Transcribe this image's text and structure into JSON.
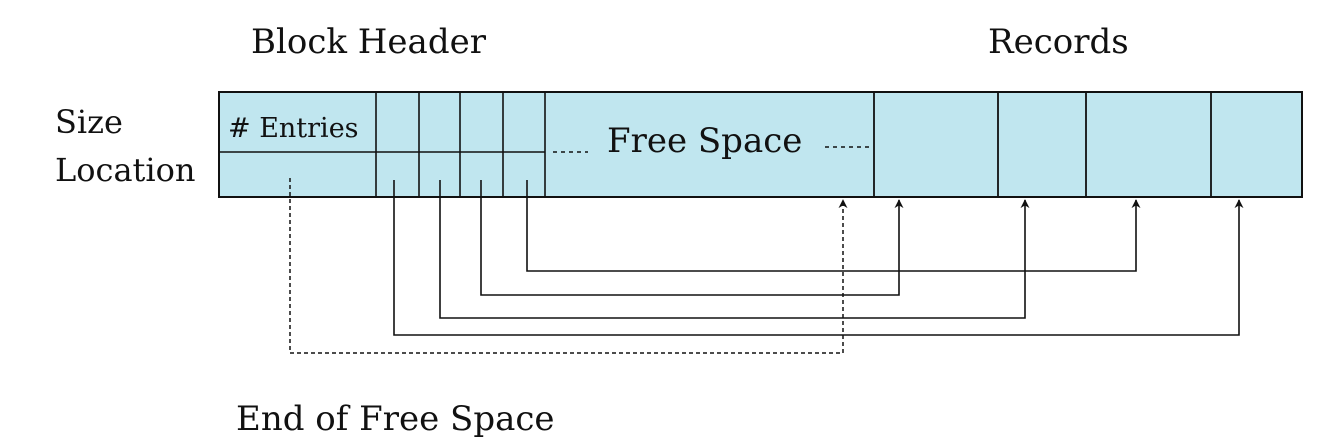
{
  "labels": {
    "block_header": "Block Header",
    "records": "Records",
    "size": "Size",
    "location": "Location",
    "num_entries": "# Entries",
    "free_space": "Free Space",
    "end_of_free_space": "End of Free Space"
  },
  "colors": {
    "cell_fill": "#c0e6ef",
    "stroke": "#111111"
  }
}
